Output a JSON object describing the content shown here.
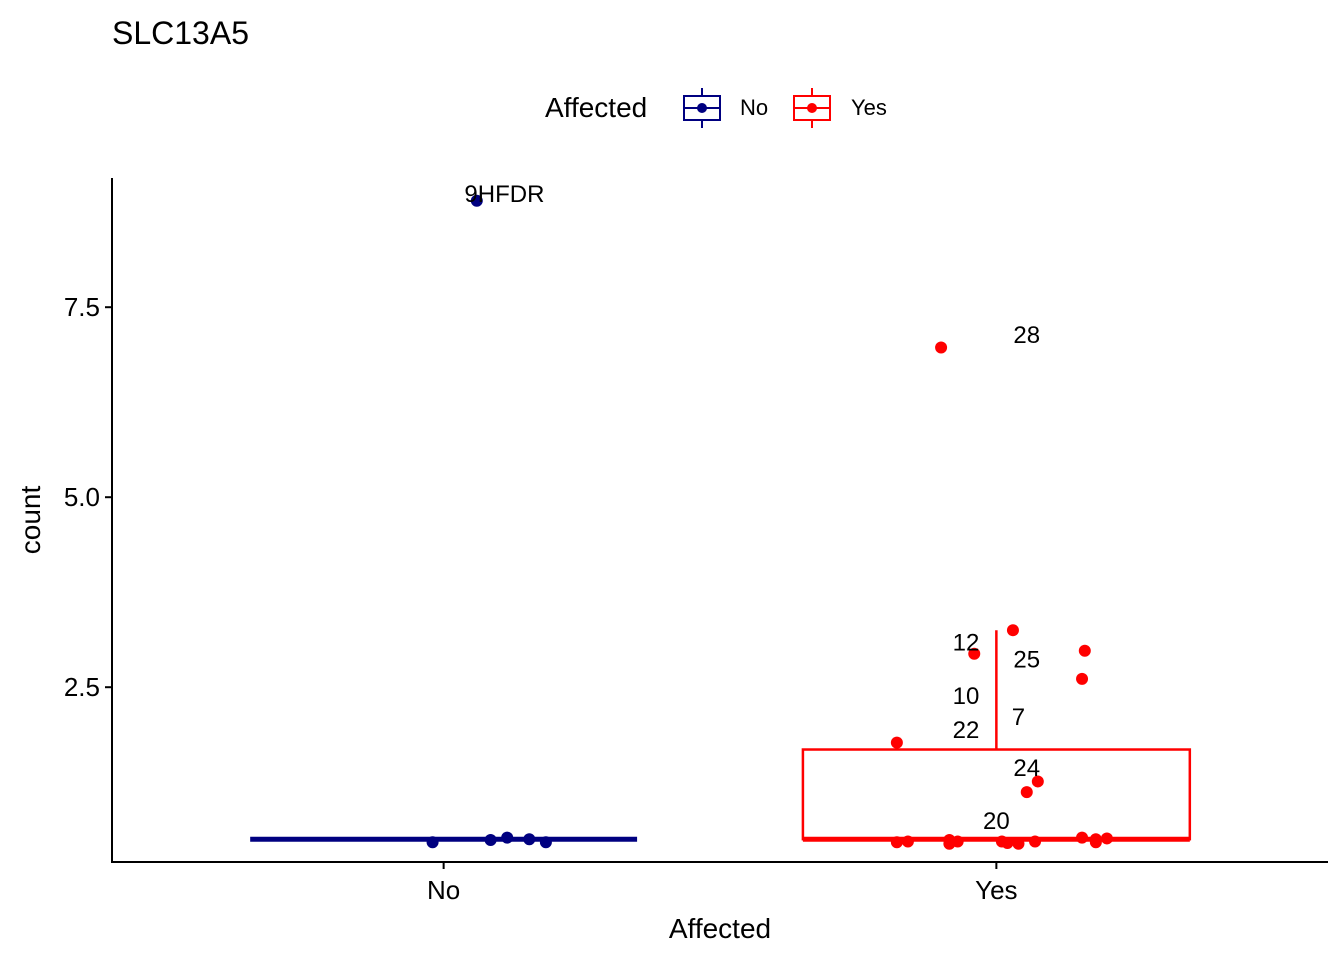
{
  "chart_data": {
    "type": "boxplot",
    "title": "SLC13A5",
    "xlabel": "Affected",
    "ylabel": "count",
    "ylim": [
      0.2,
      9.2
    ],
    "yticks": [
      2.5,
      5.0,
      7.5
    ],
    "ytick_labels": [
      "2.5",
      "5.0",
      "7.5"
    ],
    "categories": [
      "No",
      "Yes"
    ],
    "legend": {
      "title": "Affected",
      "position": "top",
      "entries": [
        {
          "label": "No",
          "color": "#000080"
        },
        {
          "label": "Yes",
          "color": "#ff0000"
        }
      ]
    },
    "boxes": [
      {
        "category": "No",
        "color": "#000080",
        "q1": 0.5,
        "median": 0.5,
        "q3": 0.5,
        "whisker_low": 0.5,
        "whisker_high": 0.5
      },
      {
        "category": "Yes",
        "color": "#ff0000",
        "q1": 0.5,
        "median": 0.5,
        "q3": 1.68,
        "whisker_low": 0.5,
        "whisker_high": 3.25
      }
    ],
    "points": [
      {
        "category": "No",
        "jitter": 0.06,
        "y": 8.9
      },
      {
        "category": "No",
        "jitter": -0.02,
        "y": 0.46
      },
      {
        "category": "No",
        "jitter": 0.085,
        "y": 0.49
      },
      {
        "category": "No",
        "jitter": 0.115,
        "y": 0.52
      },
      {
        "category": "No",
        "jitter": 0.155,
        "y": 0.5
      },
      {
        "category": "No",
        "jitter": 0.185,
        "y": 0.46
      },
      {
        "category": "Yes",
        "jitter": -0.1,
        "y": 6.97
      },
      {
        "category": "Yes",
        "jitter": 0.03,
        "y": 3.25
      },
      {
        "category": "Yes",
        "jitter": 0.16,
        "y": 2.98
      },
      {
        "category": "Yes",
        "jitter": -0.04,
        "y": 2.94
      },
      {
        "category": "Yes",
        "jitter": 0.155,
        "y": 2.61
      },
      {
        "category": "Yes",
        "jitter": -0.18,
        "y": 1.77
      },
      {
        "category": "Yes",
        "jitter": 0.075,
        "y": 1.26
      },
      {
        "category": "Yes",
        "jitter": 0.055,
        "y": 1.12
      },
      {
        "category": "Yes",
        "jitter": -0.18,
        "y": 0.46
      },
      {
        "category": "Yes",
        "jitter": -0.16,
        "y": 0.47
      },
      {
        "category": "Yes",
        "jitter": -0.085,
        "y": 0.49
      },
      {
        "category": "Yes",
        "jitter": -0.085,
        "y": 0.44
      },
      {
        "category": "Yes",
        "jitter": -0.07,
        "y": 0.47
      },
      {
        "category": "Yes",
        "jitter": 0.01,
        "y": 0.47
      },
      {
        "category": "Yes",
        "jitter": 0.02,
        "y": 0.45
      },
      {
        "category": "Yes",
        "jitter": 0.04,
        "y": 0.44
      },
      {
        "category": "Yes",
        "jitter": 0.07,
        "y": 0.47
      },
      {
        "category": "Yes",
        "jitter": 0.155,
        "y": 0.52
      },
      {
        "category": "Yes",
        "jitter": 0.18,
        "y": 0.5
      },
      {
        "category": "Yes",
        "jitter": 0.2,
        "y": 0.51
      },
      {
        "category": "Yes",
        "jitter": 0.18,
        "y": 0.46
      }
    ],
    "annotations": [
      {
        "text": "9HFDR",
        "category": "No",
        "jitter": 0.11,
        "y": 9.0
      },
      {
        "text": "28",
        "category": "Yes",
        "jitter": 0.055,
        "y": 7.15
      },
      {
        "text": "12",
        "category": "Yes",
        "jitter": -0.055,
        "y": 3.1
      },
      {
        "text": "25",
        "category": "Yes",
        "jitter": 0.055,
        "y": 2.88
      },
      {
        "text": "10",
        "category": "Yes",
        "jitter": -0.055,
        "y": 2.4
      },
      {
        "text": "7",
        "category": "Yes",
        "jitter": 0.04,
        "y": 2.12
      },
      {
        "text": "22",
        "category": "Yes",
        "jitter": -0.055,
        "y": 1.95
      },
      {
        "text": "24",
        "category": "Yes",
        "jitter": 0.055,
        "y": 1.45
      },
      {
        "text": "20",
        "category": "Yes",
        "jitter": 0.0,
        "y": 0.75
      }
    ]
  }
}
